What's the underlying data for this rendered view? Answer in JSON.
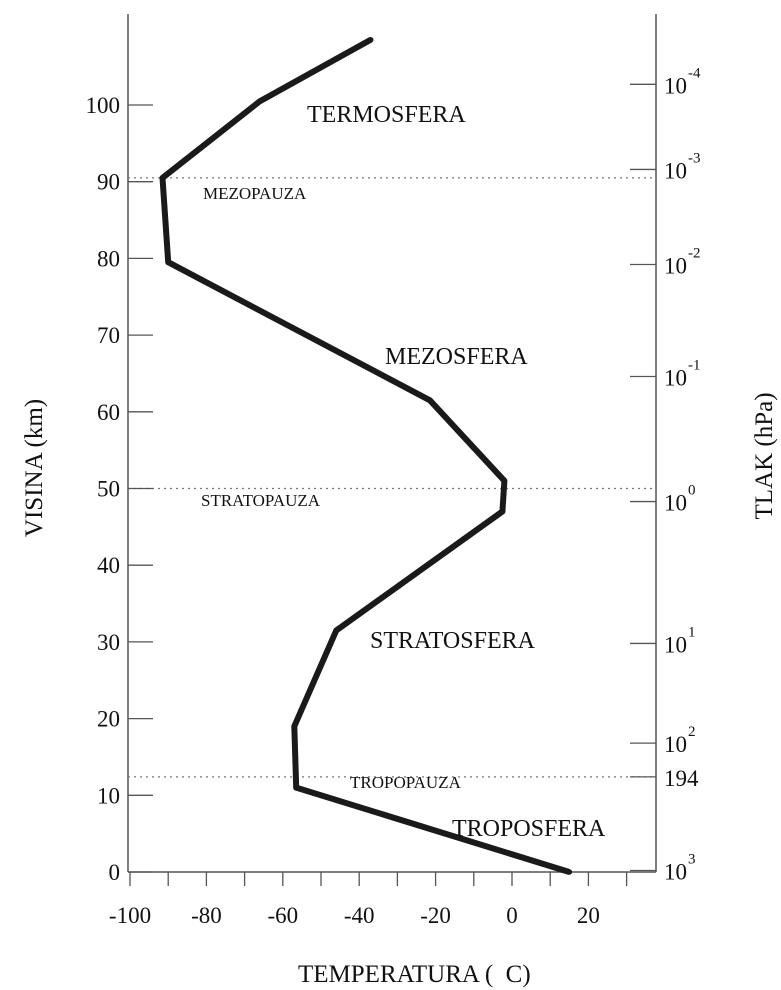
{
  "chart_data": {
    "type": "line",
    "x_axis": {
      "label": "TEMPERATURA (  C)",
      "range": [
        -100,
        40
      ],
      "ticks": [
        -100,
        -80,
        -60,
        -40,
        -20,
        0,
        20
      ],
      "tick_labels": [
        "-100",
        "-80",
        "-60",
        "-40",
        "-20",
        "0",
        "20"
      ]
    },
    "y_axis_left": {
      "label": "VISINA (km)",
      "range": [
        0,
        110
      ],
      "ticks": [
        0,
        10,
        20,
        30,
        40,
        50,
        60,
        70,
        80,
        90,
        100
      ],
      "tick_labels": [
        "0",
        "10",
        "20",
        "30",
        "40",
        "50",
        "60",
        "70",
        "80",
        "90",
        "100"
      ]
    },
    "y_axis_right": {
      "label": "TLAK (hPa)",
      "ticks": [
        {
          "altitude_km": 0.2,
          "label": "10",
          "exp": "3"
        },
        {
          "altitude_km": 12.4,
          "label": "194",
          "exp": ""
        },
        {
          "altitude_km": 16.8,
          "label": "10",
          "exp": "2"
        },
        {
          "altitude_km": 29.8,
          "label": "10",
          "exp": "1"
        },
        {
          "altitude_km": 48.3,
          "label": "10",
          "exp": "0"
        },
        {
          "altitude_km": 64.6,
          "label": "10",
          "exp": "-1"
        },
        {
          "altitude_km": 79.2,
          "label": "10",
          "exp": "-2"
        },
        {
          "altitude_km": 91.6,
          "label": "10",
          "exp": "-3"
        },
        {
          "altitude_km": 102.7,
          "label": "10",
          "exp": "-4"
        }
      ]
    },
    "series": [
      {
        "points": [
          {
            "x": 15,
            "y": 0
          },
          {
            "x": -56.5,
            "y": 11
          },
          {
            "x": -57,
            "y": 19
          },
          {
            "x": -46,
            "y": 31.5
          },
          {
            "x": -2.5,
            "y": 47
          },
          {
            "x": -2,
            "y": 51
          },
          {
            "x": -21.5,
            "y": 61.5
          },
          {
            "x": -90,
            "y": 79.5
          },
          {
            "x": -91.5,
            "y": 90.5
          },
          {
            "x": -66,
            "y": 100.5
          },
          {
            "x": -37,
            "y": 108.5
          }
        ],
        "color": "#1a1a1a"
      }
    ],
    "reference_lines": [
      {
        "altitude_km": 90.5,
        "label": "MEZOPAUZA"
      },
      {
        "altitude_km": 50,
        "label": "STRATOPAUZA"
      },
      {
        "altitude_km": 12.4,
        "label": "TROPOPAUZA"
      }
    ],
    "layer_labels": [
      "TERMOSFERA",
      "MEZOSFERA",
      "STRATOSFERA",
      "TROPOSFERA"
    ],
    "grid": false,
    "legend": "none"
  }
}
